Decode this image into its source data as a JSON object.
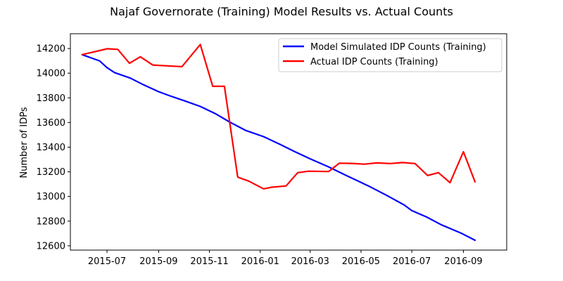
{
  "chart_data": {
    "type": "line",
    "title": "Najaf Governorate (Training) Model Results vs. Actual Counts",
    "xlabel": "",
    "ylabel": "Number of IDPs",
    "xlim": [
      "2015-05-18",
      "2016-10-23"
    ],
    "ylim": [
      12565,
      14320
    ],
    "x_ticks": [
      "2015-07",
      "2015-09",
      "2015-11",
      "2016-01",
      "2016-03",
      "2016-05",
      "2016-07",
      "2016-09"
    ],
    "x_tick_dates": [
      "2015-07-01",
      "2015-09-01",
      "2015-11-01",
      "2016-01-01",
      "2016-03-01",
      "2016-05-01",
      "2016-07-01",
      "2016-09-01"
    ],
    "y_ticks": [
      12600,
      12800,
      13000,
      13200,
      13400,
      13600,
      13800,
      14000,
      14200
    ],
    "grid": false,
    "legend_position": "top-right",
    "series": [
      {
        "name": "Model Simulated IDP Counts (Training)",
        "color": "#0000ff",
        "x": [
          "2015-06-01",
          "2015-06-22",
          "2015-07-01",
          "2015-07-10",
          "2015-07-29",
          "2015-08-14",
          "2015-09-01",
          "2015-09-15",
          "2015-10-01",
          "2015-10-21",
          "2015-11-08",
          "2015-11-25",
          "2015-12-14",
          "2016-01-05",
          "2016-01-25",
          "2016-02-11",
          "2016-03-01",
          "2016-03-23",
          "2016-04-15",
          "2016-05-10",
          "2016-06-02",
          "2016-06-22",
          "2016-07-01",
          "2016-07-19",
          "2016-08-05",
          "2016-08-30",
          "2016-09-15"
        ],
        "values": [
          14150,
          14100,
          14045,
          14005,
          13960,
          13905,
          13850,
          13815,
          13778,
          13730,
          13672,
          13605,
          13537,
          13485,
          13422,
          13365,
          13305,
          13240,
          13165,
          13085,
          13005,
          12930,
          12885,
          12833,
          12772,
          12700,
          12645
        ]
      },
      {
        "name": "Actual IDP Counts (Training)",
        "color": "#ff0000",
        "x": [
          "2015-06-01",
          "2015-06-22",
          "2015-07-01",
          "2015-07-14",
          "2015-07-28",
          "2015-08-10",
          "2015-08-25",
          "2015-09-29",
          "2015-10-21",
          "2015-11-05",
          "2015-11-19",
          "2015-12-05",
          "2015-12-18",
          "2016-01-05",
          "2016-01-15",
          "2016-02-01",
          "2016-02-15",
          "2016-02-28",
          "2016-03-23",
          "2016-04-05",
          "2016-04-20",
          "2016-05-05",
          "2016-05-20",
          "2016-06-05",
          "2016-06-20",
          "2016-07-05",
          "2016-07-20",
          "2016-08-02",
          "2016-08-16",
          "2016-09-01",
          "2016-09-15"
        ],
        "values": [
          14150,
          14183,
          14198,
          14193,
          14080,
          14133,
          14066,
          14053,
          14233,
          13893,
          13893,
          13157,
          13125,
          13062,
          13075,
          13085,
          13193,
          13205,
          13202,
          13270,
          13268,
          13262,
          13272,
          13267,
          13275,
          13267,
          13170,
          13193,
          13112,
          13363,
          13118
        ]
      }
    ]
  }
}
